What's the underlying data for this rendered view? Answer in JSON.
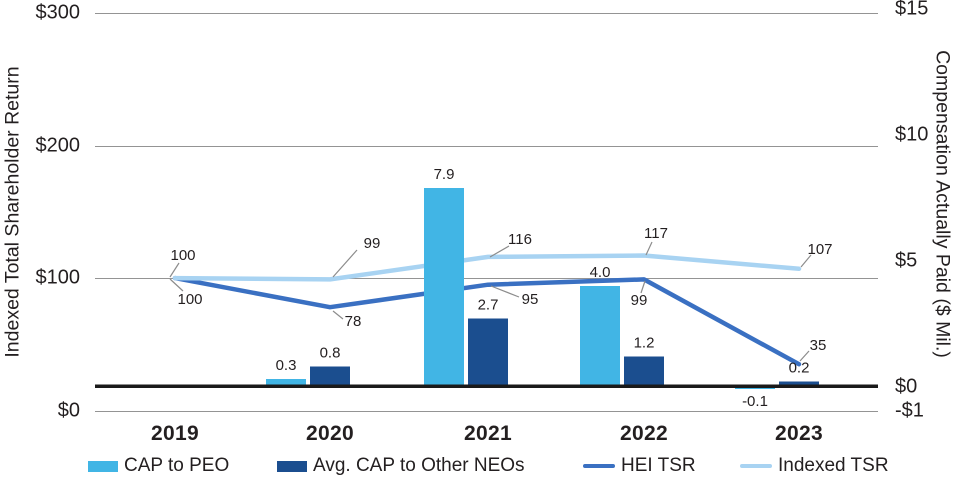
{
  "axes": {
    "left": {
      "title": "Indexed Total Shareholder Return",
      "ticks": [
        {
          "label": "$300",
          "value": 300
        },
        {
          "label": "$200",
          "value": 200
        },
        {
          "label": "$100",
          "value": 100
        },
        {
          "label": "$0",
          "value": 0
        }
      ]
    },
    "right": {
      "title": "Compensation Actually Paid ($ Mil.)",
      "ticks": [
        {
          "label": "$15",
          "value": 15
        },
        {
          "label": "$10",
          "value": 10
        },
        {
          "label": "$5",
          "value": 5
        },
        {
          "label": "$0",
          "value": 0
        },
        {
          "label": "-$1",
          "value": -1
        }
      ]
    }
  },
  "legend": [
    {
      "label": "CAP to PEO",
      "type": "bar",
      "color": "#41B5E5"
    },
    {
      "label": "Avg. CAP to Other NEOs",
      "type": "bar",
      "color": "#1B4E8F"
    },
    {
      "label": "HEI TSR",
      "type": "line",
      "color": "#3A70C2"
    },
    {
      "label": "Indexed TSR",
      "type": "line",
      "color": "#A8D3F2"
    }
  ],
  "colors": {
    "cap_peo": "#41B5E5",
    "cap_neo": "#1B4E8F",
    "hei_tsr": "#3A70C2",
    "indexed_tsr": "#A8D3F2",
    "gridline": "#949494",
    "baseline": "#1A1A1A",
    "connector": "#8C8C8C",
    "text": "#231F20"
  },
  "chart_data": {
    "type": "bar+line combo, dual axis",
    "categories": [
      "2019",
      "2020",
      "2021",
      "2022",
      "2023"
    ],
    "series": [
      {
        "name": "CAP to PEO",
        "type": "bar",
        "axis": "right",
        "color": "#41B5E5",
        "values": [
          null,
          0.3,
          7.9,
          4.0,
          -0.1
        ],
        "labels": [
          "",
          "0.3",
          "7.9",
          "4.0",
          "-0.1"
        ]
      },
      {
        "name": "Avg. CAP to Other NEOs",
        "type": "bar",
        "axis": "right",
        "color": "#1B4E8F",
        "values": [
          null,
          0.8,
          2.7,
          1.2,
          0.2
        ],
        "labels": [
          "",
          "0.8",
          "2.7",
          "1.2",
          "0.2"
        ]
      },
      {
        "name": "HEI TSR",
        "type": "line",
        "axis": "left",
        "color": "#3A70C2",
        "values": [
          100,
          78,
          95,
          99,
          35
        ],
        "labels": [
          "100",
          "78",
          "95",
          "99",
          "35"
        ]
      },
      {
        "name": "Indexed TSR",
        "type": "line",
        "axis": "left",
        "color": "#A8D3F2",
        "values": [
          100,
          99,
          116,
          117,
          107
        ],
        "labels": [
          "100",
          "99",
          "116",
          "117",
          "107"
        ]
      }
    ],
    "left_axis": {
      "label": "Indexed Total Shareholder Return",
      "range": [
        0,
        300
      ],
      "tick_step": 100,
      "unit": "$"
    },
    "right_axis": {
      "label": "Compensation Actually Paid ($ Mil.)",
      "range": [
        -1,
        15
      ],
      "ticks": [
        15,
        10,
        5,
        0,
        -1
      ],
      "unit": "$ Mil."
    },
    "grid": true,
    "legend_position": "bottom"
  }
}
